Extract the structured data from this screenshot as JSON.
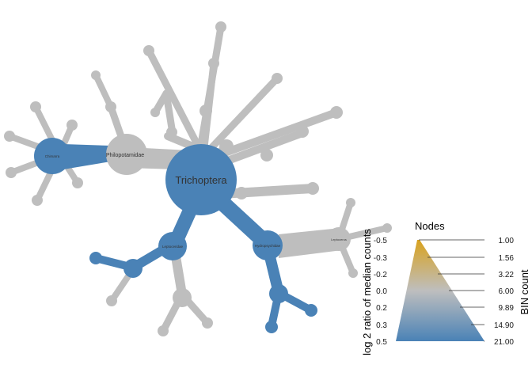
{
  "colors": {
    "blue": "#4a82b6",
    "grey": "#bebebe",
    "gold": "#d9a21e",
    "label": "#333333"
  },
  "tree": {
    "root_label": "Trichoptera",
    "labels": {
      "philopotamidae": "Philopotamidae",
      "chimarra": "Chimarra",
      "leptoceridae": "Leptoceridae",
      "hydropsychidae": "Hydropsychidae",
      "leptocerus": "Leptocerus"
    }
  },
  "legend": {
    "title": "Nodes",
    "left_axis_title": "log 2 ratio of median counts",
    "left_ticks": [
      "-0.5",
      "-0.3",
      "-0.2",
      "0.0",
      "0.2",
      "0.3",
      "0.5"
    ],
    "right_axis_title": "BIN count",
    "right_ticks": [
      "1.00",
      "1.56",
      "3.22",
      "6.00",
      "9.89",
      "14.90",
      "21.00"
    ]
  }
}
